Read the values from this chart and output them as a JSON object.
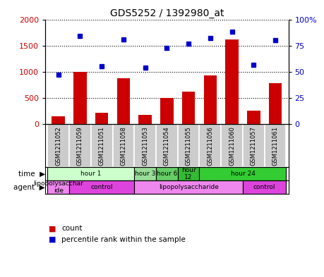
{
  "title": "GDS5252 / 1392980_at",
  "samples": [
    "GSM1211052",
    "GSM1211059",
    "GSM1211051",
    "GSM1211058",
    "GSM1211053",
    "GSM1211054",
    "GSM1211055",
    "GSM1211056",
    "GSM1211060",
    "GSM1211057",
    "GSM1211061"
  ],
  "counts": [
    150,
    1000,
    220,
    880,
    175,
    500,
    620,
    930,
    1620,
    255,
    790
  ],
  "percentiles": [
    47,
    84,
    55,
    81,
    54,
    73,
    77,
    82,
    88,
    57,
    80
  ],
  "ylim_left": [
    0,
    2000
  ],
  "ylim_right": [
    0,
    100
  ],
  "yticks_left": [
    0,
    500,
    1000,
    1500,
    2000
  ],
  "yticks_right": [
    0,
    25,
    50,
    75,
    100
  ],
  "bar_color": "#cc0000",
  "dot_color": "#0000cc",
  "time_row": [
    {
      "label": "hour 1",
      "start": 0,
      "end": 4,
      "color": "#ccffcc"
    },
    {
      "label": "hour 3",
      "start": 4,
      "end": 5,
      "color": "#99dd99"
    },
    {
      "label": "hour 6",
      "start": 5,
      "end": 6,
      "color": "#66cc66"
    },
    {
      "label": "hour\n12",
      "start": 6,
      "end": 7,
      "color": "#33bb33"
    },
    {
      "label": "hour 24",
      "start": 7,
      "end": 11,
      "color": "#33cc33"
    }
  ],
  "agent_row": [
    {
      "label": "lipopolysacchar\nide",
      "start": 0,
      "end": 1,
      "color": "#ee88ee"
    },
    {
      "label": "control",
      "start": 1,
      "end": 4,
      "color": "#dd44dd"
    },
    {
      "label": "lipopolysaccharide",
      "start": 4,
      "end": 9,
      "color": "#ee88ee"
    },
    {
      "label": "control",
      "start": 9,
      "end": 11,
      "color": "#dd44dd"
    }
  ],
  "background_color": "#ffffff",
  "gray_cell": "#cccccc",
  "gray_border": "#aaaaaa"
}
